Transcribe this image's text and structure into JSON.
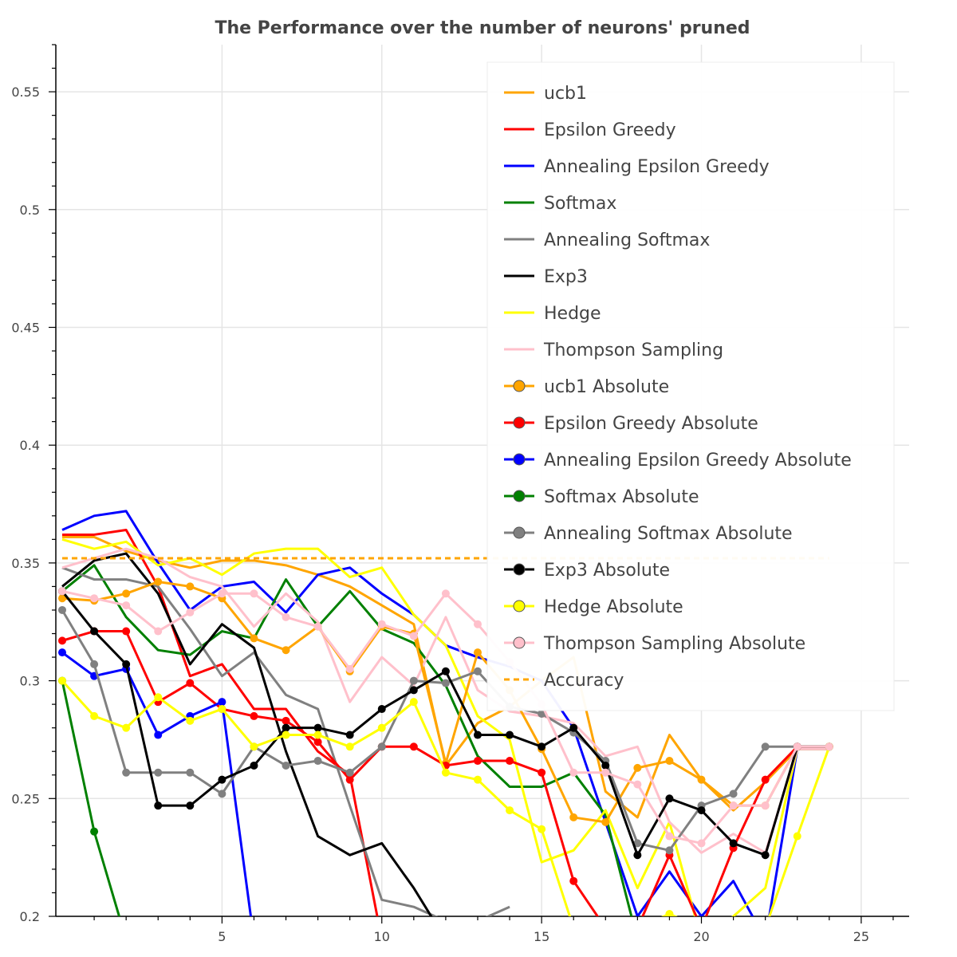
{
  "chart_data": {
    "type": "line",
    "title": "The Performance over the number of neurons' pruned",
    "xlabel": "",
    "ylabel": "",
    "xlim": [
      -0.2,
      26.5
    ],
    "ylim": [
      0.2,
      0.57
    ],
    "grid": true,
    "legend_position": "top-right",
    "x_ticks": [
      5,
      10,
      15,
      20,
      25
    ],
    "x_tick_labels": [
      "5",
      "10",
      "15",
      "20",
      "25"
    ],
    "y_ticks": [
      0.2,
      0.25,
      0.3,
      0.35,
      0.4,
      0.45,
      0.5,
      0.55
    ],
    "y_tick_labels": [
      "0.2",
      "0.25",
      "0.3",
      "0.35",
      "0.4",
      "0.45",
      "0.5",
      "0.55"
    ],
    "series": [
      {
        "name": "ucb1",
        "color": "#ffa500",
        "marker": false,
        "dash": false,
        "x": [
          0,
          1,
          2,
          3,
          4,
          5,
          6,
          7,
          8,
          9,
          10,
          11,
          12,
          13,
          14,
          15,
          16,
          17,
          18,
          19,
          20,
          21,
          22,
          23,
          24
        ],
        "y": [
          0.361,
          0.361,
          0.355,
          0.351,
          0.348,
          0.351,
          0.351,
          0.349,
          0.345,
          0.34,
          0.332,
          0.324,
          0.264,
          0.282,
          0.289,
          0.3,
          0.31,
          0.253,
          0.242,
          0.277,
          0.258,
          0.245,
          0.257,
          0.271,
          0.271
        ]
      },
      {
        "name": "Epsilon Greedy",
        "color": "#ff0000",
        "marker": false,
        "dash": false,
        "x": [
          0,
          1,
          2,
          3,
          4,
          5,
          6,
          7,
          8,
          9,
          10
        ],
        "y": [
          0.362,
          0.362,
          0.364,
          0.34,
          0.302,
          0.307,
          0.288,
          0.288,
          0.27,
          0.26,
          0.19
        ]
      },
      {
        "name": "Annealing Epsilon Greedy",
        "color": "#0000ff",
        "marker": false,
        "dash": false,
        "x": [
          0,
          1,
          2,
          3,
          4,
          5,
          6,
          7,
          8,
          9,
          10,
          11,
          12,
          13,
          14,
          15,
          16,
          17,
          18,
          19,
          20,
          21,
          22,
          23,
          24
        ],
        "y": [
          0.364,
          0.37,
          0.372,
          0.35,
          0.33,
          0.34,
          0.342,
          0.329,
          0.345,
          0.348,
          0.337,
          0.328,
          0.315,
          0.31,
          0.306,
          0.3,
          0.28,
          0.24,
          0.2,
          0.219,
          0.2,
          0.215,
          0.19,
          0.271,
          0.271
        ]
      },
      {
        "name": "Softmax",
        "color": "#008000",
        "marker": false,
        "dash": false,
        "x": [
          0,
          1,
          2,
          3,
          4,
          5,
          6,
          7,
          8,
          9,
          10,
          11,
          12,
          13,
          14,
          15,
          16,
          17,
          18
        ],
        "y": [
          0.338,
          0.349,
          0.327,
          0.313,
          0.311,
          0.321,
          0.318,
          0.343,
          0.323,
          0.338,
          0.322,
          0.316,
          0.298,
          0.268,
          0.255,
          0.255,
          0.261,
          0.243,
          0.19
        ]
      },
      {
        "name": "Annealing Softmax",
        "color": "#808080",
        "marker": false,
        "dash": false,
        "x": [
          0,
          1,
          2,
          3,
          4,
          5,
          6,
          7,
          8,
          9,
          10,
          11,
          12,
          13,
          14
        ],
        "y": [
          0.348,
          0.343,
          0.343,
          0.34,
          0.322,
          0.302,
          0.312,
          0.294,
          0.288,
          0.247,
          0.207,
          0.204,
          0.198,
          0.198,
          0.204
        ]
      },
      {
        "name": "Exp3",
        "color": "#000000",
        "marker": false,
        "dash": false,
        "x": [
          0,
          1,
          2,
          3,
          4,
          5,
          6,
          7,
          8,
          9,
          10,
          11,
          12
        ],
        "y": [
          0.34,
          0.351,
          0.354,
          0.337,
          0.307,
          0.324,
          0.314,
          0.27,
          0.234,
          0.226,
          0.231,
          0.212,
          0.19
        ]
      },
      {
        "name": "Hedge",
        "color": "#ffff00",
        "marker": false,
        "dash": false,
        "x": [
          0,
          1,
          2,
          3,
          4,
          5,
          6,
          7,
          8,
          9,
          10,
          11,
          12,
          13,
          14,
          15,
          16,
          17,
          18,
          19,
          20,
          21,
          22,
          23,
          24
        ],
        "y": [
          0.36,
          0.356,
          0.359,
          0.349,
          0.352,
          0.345,
          0.354,
          0.356,
          0.356,
          0.344,
          0.348,
          0.328,
          0.315,
          0.285,
          0.275,
          0.223,
          0.228,
          0.245,
          0.212,
          0.24,
          0.19,
          0.2,
          0.212,
          0.271,
          0.271
        ]
      },
      {
        "name": "Thompson Sampling",
        "color": "#ffc0cb",
        "marker": false,
        "dash": false,
        "x": [
          0,
          1,
          2,
          3,
          4,
          5,
          6,
          7,
          8,
          9,
          10,
          11,
          12,
          13,
          14,
          15,
          16,
          17,
          18,
          19,
          20,
          21,
          22,
          23,
          24
        ],
        "y": [
          0.348,
          0.352,
          0.356,
          0.352,
          0.344,
          0.34,
          0.323,
          0.337,
          0.325,
          0.291,
          0.31,
          0.298,
          0.327,
          0.296,
          0.287,
          0.285,
          0.282,
          0.268,
          0.272,
          0.24,
          0.227,
          0.235,
          0.227,
          0.271,
          0.271
        ]
      },
      {
        "name": "ucb1 Absolute",
        "color": "#ffa500",
        "marker": true,
        "dash": false,
        "x": [
          0,
          1,
          2,
          3,
          4,
          5,
          6,
          7,
          8,
          9,
          10,
          11,
          12,
          13,
          14,
          15,
          16,
          17,
          18,
          19,
          20,
          21,
          22,
          23,
          24
        ],
        "y": [
          0.335,
          0.334,
          0.337,
          0.342,
          0.34,
          0.335,
          0.318,
          0.313,
          0.323,
          0.304,
          0.323,
          0.32,
          0.265,
          0.312,
          0.296,
          0.271,
          0.242,
          0.24,
          0.263,
          0.266,
          0.258,
          0.247,
          0.247,
          0.272,
          0.272
        ]
      },
      {
        "name": "Epsilon Greedy Absolute",
        "color": "#ff0000",
        "marker": true,
        "dash": false,
        "x": [
          0,
          1,
          2,
          3,
          4,
          5,
          6,
          7,
          8,
          9,
          10,
          11,
          12,
          13,
          14,
          15,
          16,
          17,
          18,
          19,
          20,
          21,
          22,
          23,
          24
        ],
        "y": [
          0.317,
          0.321,
          0.321,
          0.291,
          0.299,
          0.288,
          0.285,
          0.283,
          0.274,
          0.258,
          0.272,
          0.272,
          0.264,
          0.266,
          0.266,
          0.261,
          0.215,
          0.195,
          0.195,
          0.226,
          0.195,
          0.229,
          0.258,
          0.272,
          0.272
        ]
      },
      {
        "name": "Annealing Epsilon Greedy Absolute",
        "color": "#0000ff",
        "marker": true,
        "dash": false,
        "x": [
          0,
          1,
          2,
          3,
          4,
          5,
          6
        ],
        "y": [
          0.312,
          0.302,
          0.305,
          0.277,
          0.285,
          0.291,
          0.19
        ]
      },
      {
        "name": "Softmax Absolute",
        "color": "#008000",
        "marker": true,
        "dash": false,
        "x": [
          0,
          1,
          2
        ],
        "y": [
          0.3,
          0.236,
          0.19
        ]
      },
      {
        "name": "Annealing Softmax Absolute",
        "color": "#808080",
        "marker": true,
        "dash": false,
        "x": [
          0,
          1,
          2,
          3,
          4,
          5,
          6,
          7,
          8,
          9,
          10,
          11,
          12,
          13,
          14,
          15,
          16,
          17,
          18,
          19,
          20,
          21,
          22,
          23,
          24
        ],
        "y": [
          0.33,
          0.307,
          0.261,
          0.261,
          0.261,
          0.252,
          0.272,
          0.264,
          0.266,
          0.261,
          0.272,
          0.3,
          0.299,
          0.304,
          0.289,
          0.286,
          0.278,
          0.266,
          0.231,
          0.228,
          0.247,
          0.252,
          0.272,
          0.272,
          0.272
        ]
      },
      {
        "name": "Exp3 Absolute",
        "color": "#000000",
        "marker": true,
        "dash": false,
        "x": [
          0,
          1,
          2,
          3,
          4,
          5,
          6,
          7,
          8,
          9,
          10,
          11,
          12,
          13,
          14,
          15,
          16,
          17,
          18,
          19,
          20,
          21,
          22,
          23,
          24
        ],
        "y": [
          0.338,
          0.321,
          0.307,
          0.247,
          0.247,
          0.258,
          0.264,
          0.28,
          0.28,
          0.277,
          0.288,
          0.296,
          0.304,
          0.277,
          0.277,
          0.272,
          0.28,
          0.264,
          0.226,
          0.25,
          0.245,
          0.231,
          0.226,
          0.272,
          0.272
        ]
      },
      {
        "name": "Hedge Absolute",
        "color": "#ffff00",
        "marker": true,
        "dash": false,
        "x": [
          0,
          1,
          2,
          3,
          4,
          5,
          6,
          7,
          8,
          9,
          10,
          11,
          12,
          13,
          14,
          15,
          16,
          17,
          18,
          19,
          20,
          21,
          22,
          23,
          24
        ],
        "y": [
          0.3,
          0.285,
          0.28,
          0.293,
          0.283,
          0.288,
          0.272,
          0.277,
          0.277,
          0.272,
          0.28,
          0.291,
          0.261,
          0.258,
          0.245,
          0.237,
          0.195,
          0.195,
          0.195,
          0.201,
          0.195,
          0.195,
          0.195,
          0.234,
          0.272
        ]
      },
      {
        "name": "Thompson Sampling Absolute",
        "color": "#ffc0cb",
        "marker": true,
        "dash": false,
        "x": [
          0,
          1,
          2,
          3,
          4,
          5,
          6,
          7,
          8,
          9,
          10,
          11,
          12,
          13,
          14,
          15,
          16,
          17,
          18,
          19,
          20,
          21,
          22,
          23,
          24
        ],
        "y": [
          0.338,
          0.335,
          0.332,
          0.321,
          0.329,
          0.337,
          0.337,
          0.327,
          0.323,
          0.305,
          0.324,
          0.319,
          0.337,
          0.324,
          0.308,
          0.29,
          0.261,
          0.261,
          0.256,
          0.234,
          0.231,
          0.247,
          0.247,
          0.272,
          0.272
        ]
      },
      {
        "name": "Accuracy",
        "color": "#ffa500",
        "marker": false,
        "dash": true,
        "x": [
          0,
          24
        ],
        "y": [
          0.352,
          0.352
        ]
      }
    ]
  }
}
